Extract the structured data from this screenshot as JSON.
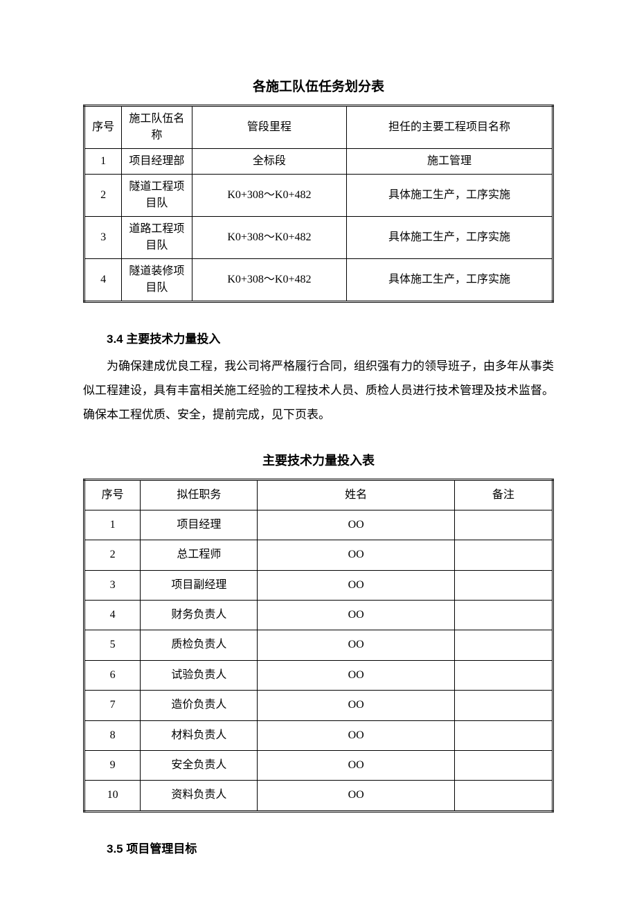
{
  "table1": {
    "title": "各施工队伍任务划分表",
    "columns": [
      "序号",
      "施工队伍名　称",
      "管段里程",
      "担任的主要工程项目名称"
    ],
    "rows": [
      [
        "1",
        "项目经理部",
        "全标段",
        "施工管理"
      ],
      [
        "2",
        "隧道工程项目队",
        "K0+308～K0+482",
        "具体施工生产，工序实施"
      ],
      [
        "3",
        "道路工程项目队",
        "K0+308～K0+482",
        "具体施工生产，工序实施"
      ],
      [
        "4",
        "隧道装修项目队",
        "K0+308～K0+482",
        "具体施工生产，工序实施"
      ]
    ]
  },
  "section34": {
    "heading": "3.4 主要技术力量投入",
    "paragraph": "为确保建成优良工程，我公司将严格履行合同，组织强有力的领导班子，由多年从事类似工程建设，具有丰富相关施工经验的工程技术人员、质检人员进行技术管理及技术监督。确保本工程优质、安全，提前完成，见下页表。"
  },
  "table2": {
    "title": "主要技术力量投入表",
    "columns": [
      "序号",
      "拟任职务",
      "姓名",
      "备注"
    ],
    "rows": [
      [
        "1",
        "项目经理",
        "OO",
        ""
      ],
      [
        "2",
        "总工程师",
        "OO",
        ""
      ],
      [
        "3",
        "项目副经理",
        "OO",
        ""
      ],
      [
        "4",
        "财务负责人",
        "OO",
        ""
      ],
      [
        "5",
        "质检负责人",
        "OO",
        ""
      ],
      [
        "6",
        "试验负责人",
        "OO",
        ""
      ],
      [
        "7",
        "造价负责人",
        "OO",
        ""
      ],
      [
        "8",
        "材料负责人",
        "OO",
        ""
      ],
      [
        "9",
        "安全负责人",
        "OO",
        ""
      ],
      [
        "10",
        "资料负责人",
        "OO",
        ""
      ]
    ]
  },
  "section35": {
    "heading": "3.5 项目管理目标"
  },
  "style": {
    "page_bg": "#ffffff",
    "text_color": "#000000",
    "border_color": "#000000",
    "body_font": "SimSun",
    "heading_font": "SimHei",
    "title_fontsize": 19,
    "body_fontsize": 17,
    "table_fontsize": 16
  }
}
